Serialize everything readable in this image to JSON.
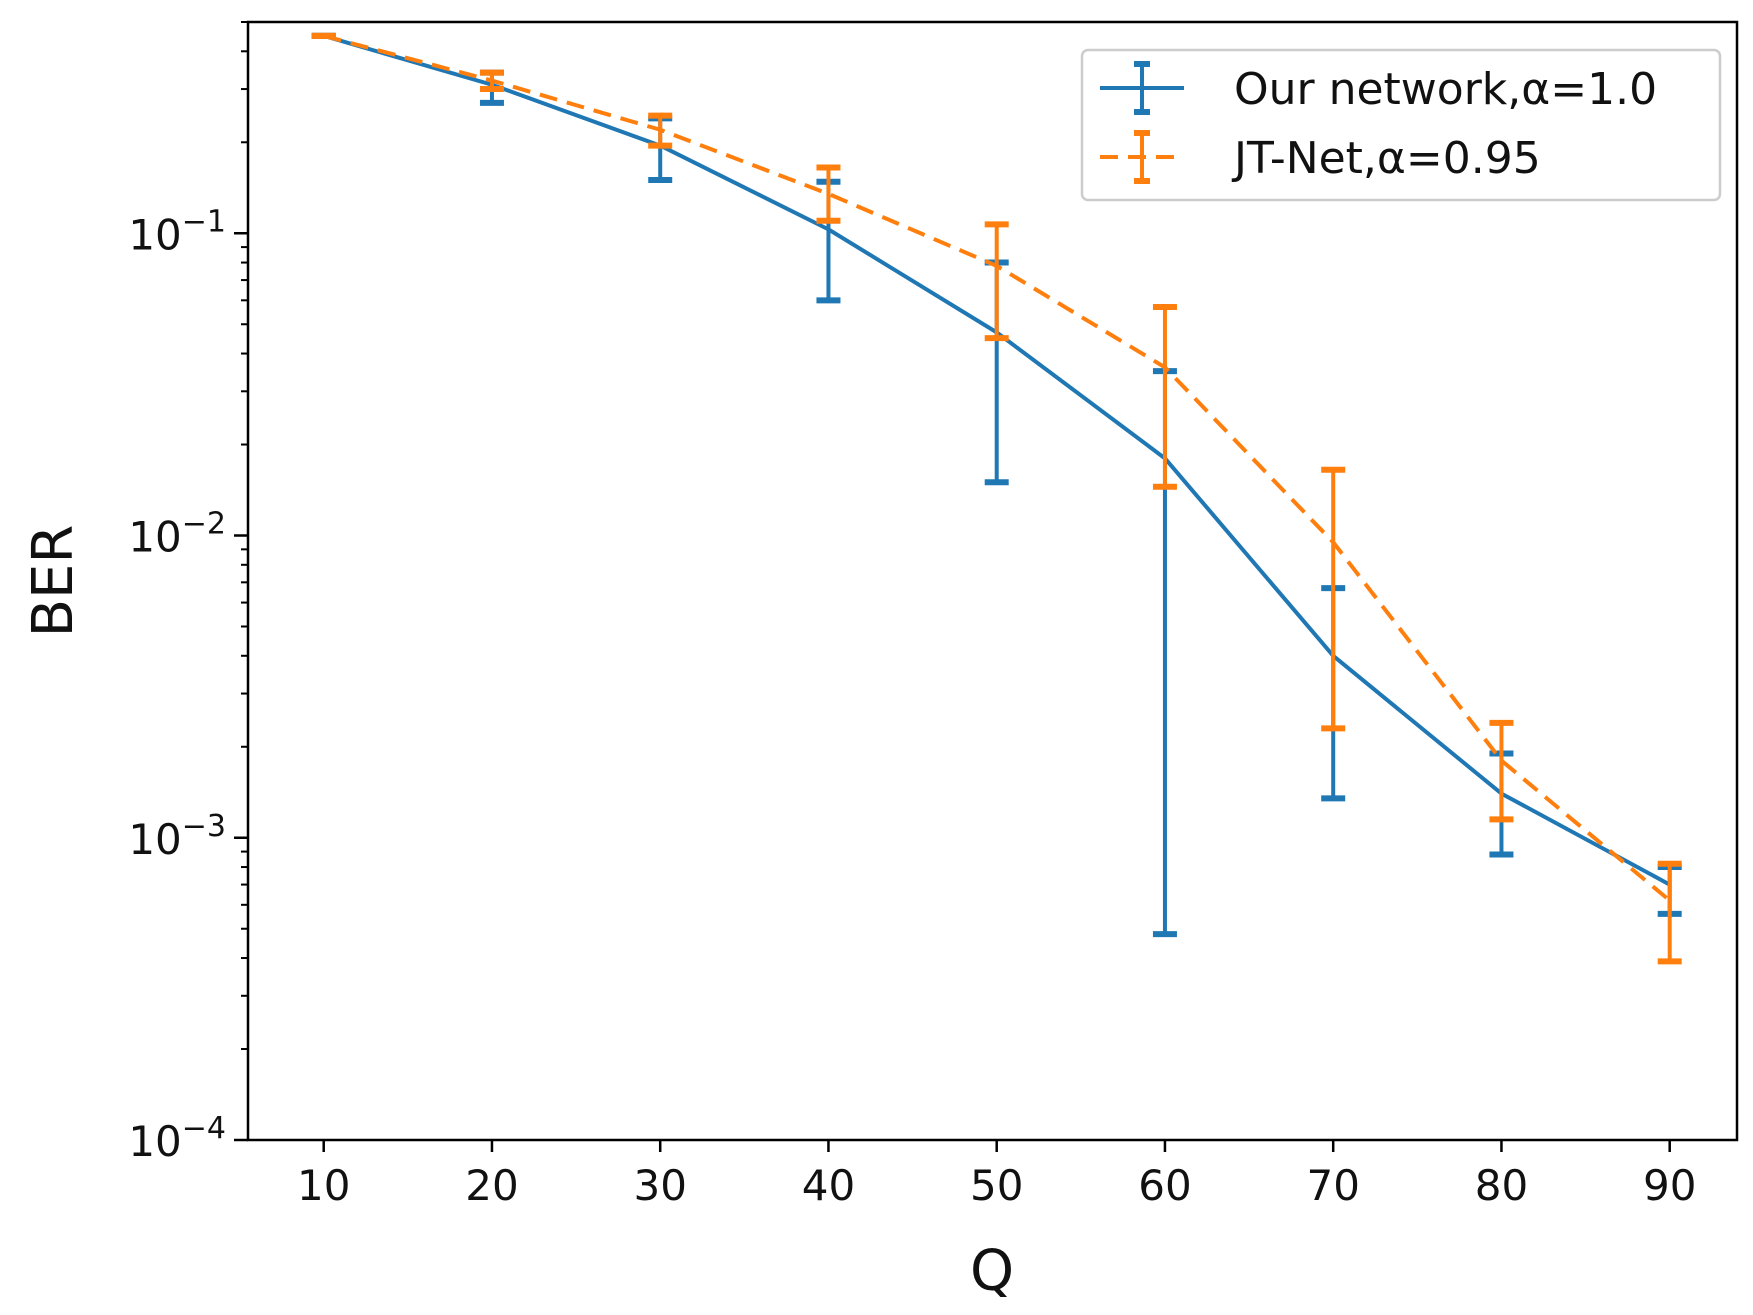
{
  "chart_data": {
    "type": "line",
    "title": "",
    "xlabel": "Q",
    "ylabel": "BER",
    "x": [
      10,
      20,
      30,
      40,
      50,
      60,
      70,
      80,
      90
    ],
    "x_ticks": [
      "10",
      "20",
      "30",
      "40",
      "50",
      "60",
      "70",
      "80",
      "90"
    ],
    "xlim": [
      5.5,
      94
    ],
    "y_scale": "log",
    "ylim": [
      0.0001,
      0.5
    ],
    "y_ticks": [
      {
        "value": 0.1,
        "base": "10",
        "exp": "−1"
      },
      {
        "value": 0.01,
        "base": "10",
        "exp": "−2"
      },
      {
        "value": 0.001,
        "base": "10",
        "exp": "−3"
      },
      {
        "value": 0.0001,
        "base": "10",
        "exp": "−4"
      }
    ],
    "grid": false,
    "legend_position": "top-right",
    "error_bars": true,
    "series": [
      {
        "name": "Our network,α=1.0",
        "color": "#1f77b4",
        "style": "solid",
        "values": [
          0.45,
          0.31,
          0.195,
          0.103,
          0.047,
          0.018,
          0.004,
          0.0014,
          0.0007
        ],
        "err_low": [
          0.45,
          0.27,
          0.15,
          0.06,
          0.015,
          0.00048,
          0.00135,
          0.00088,
          0.00056
        ],
        "err_high": [
          0.45,
          0.34,
          0.24,
          0.148,
          0.08,
          0.035,
          0.0067,
          0.0019,
          0.0008
        ]
      },
      {
        "name": "JT-Net,α=0.95",
        "color": "#ff7f0e",
        "style": "dashed",
        "values": [
          0.45,
          0.32,
          0.22,
          0.135,
          0.078,
          0.036,
          0.0095,
          0.0018,
          0.00062
        ],
        "err_low": [
          0.45,
          0.3,
          0.195,
          0.11,
          0.045,
          0.0145,
          0.0023,
          0.00115,
          0.00039
        ],
        "err_high": [
          0.45,
          0.34,
          0.245,
          0.165,
          0.107,
          0.057,
          0.0165,
          0.0024,
          0.00082
        ]
      }
    ]
  }
}
